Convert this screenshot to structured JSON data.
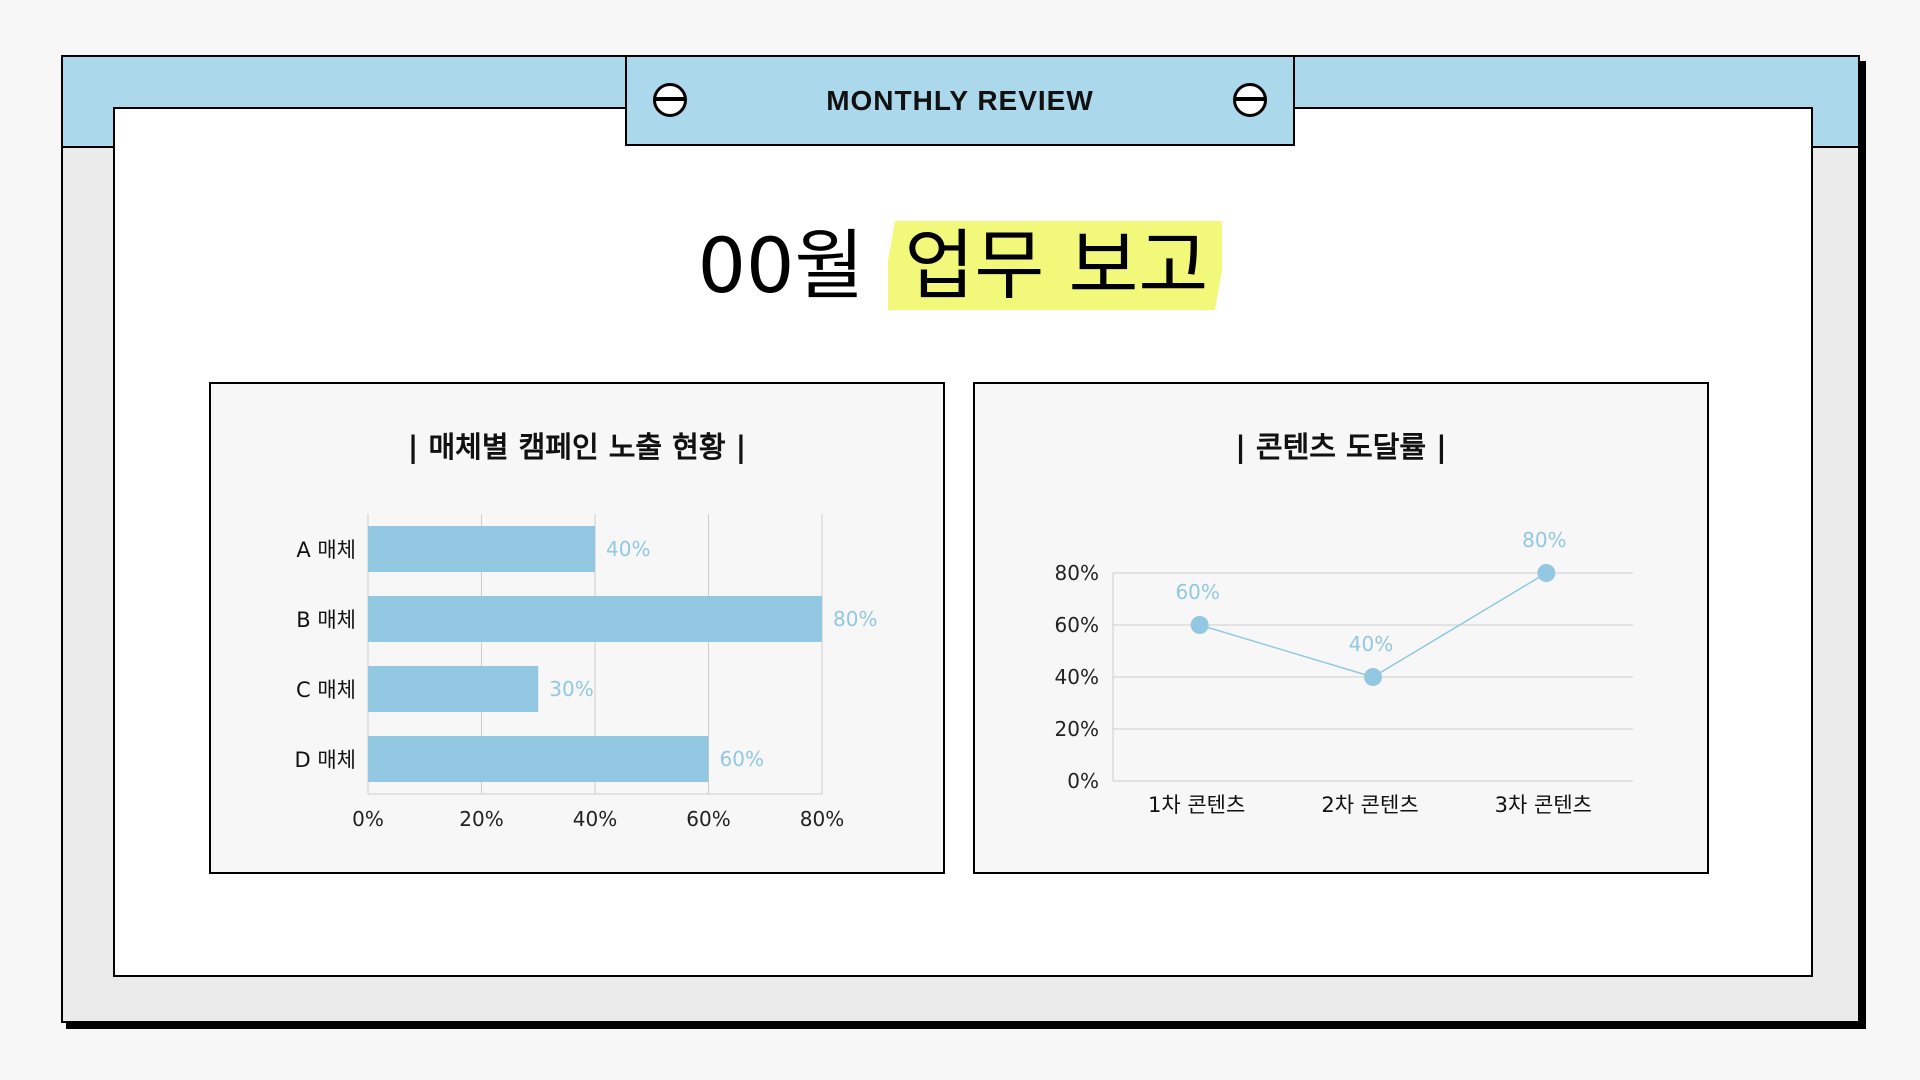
{
  "header": {
    "title": "MONTHLY REVIEW"
  },
  "title": {
    "prefix": "00월",
    "highlight": "업무 보고"
  },
  "colors": {
    "band": "#acd8ec",
    "bar": "#92c8e2",
    "highlight": "#f1f87a",
    "grid": "#cccccc"
  },
  "icons": [
    "screw-icon",
    "screw-icon"
  ],
  "chart_data": [
    {
      "type": "bar",
      "orientation": "horizontal",
      "title": "| 매체별 캠페인 노출 현황 |",
      "categories": [
        "A 매체",
        "B 매체",
        "C 매체",
        "D 매체"
      ],
      "values": [
        40,
        80,
        30,
        60
      ],
      "data_labels": [
        "40%",
        "80%",
        "30%",
        "60%"
      ],
      "xticks": [
        "0%",
        "20%",
        "40%",
        "60%",
        "80%"
      ],
      "xlim": [
        0,
        80
      ],
      "grid": true
    },
    {
      "type": "line",
      "title": "| 콘텐츠 도달률 |",
      "categories": [
        "1차 콘텐츠",
        "2차 콘텐츠",
        "3차 콘텐츠"
      ],
      "values": [
        60,
        40,
        80
      ],
      "data_labels": [
        "60%",
        "40%",
        "80%"
      ],
      "yticks": [
        "0%",
        "20%",
        "40%",
        "60%",
        "80%"
      ],
      "ylim": [
        0,
        80
      ],
      "grid": true
    }
  ]
}
